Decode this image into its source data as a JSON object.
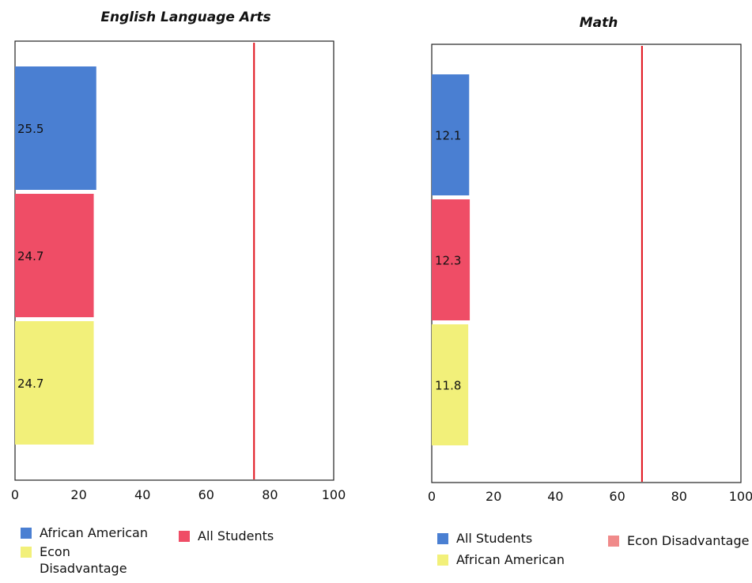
{
  "chart_data": [
    {
      "type": "bar",
      "orientation": "horizontal",
      "title": "English Language Arts",
      "xlabel": "",
      "ylabel": "",
      "xlim": [
        0,
        100
      ],
      "x_ticks": [
        "0",
        "20",
        "40",
        "60",
        "80",
        "100"
      ],
      "grid": false,
      "reference_line": {
        "value": 75,
        "color": "#e0101a"
      },
      "series": [
        {
          "name": "African American",
          "value": 25.5,
          "label": "25.5",
          "color": "#4a7fd2"
        },
        {
          "name": "All Students",
          "value": 24.7,
          "label": "24.7",
          "color": "#ef4d66"
        },
        {
          "name": "Econ Disadvantage",
          "value": 24.7,
          "label": "24.7",
          "color": "#f2f07a"
        }
      ],
      "legend": {
        "position": "bottom",
        "items": [
          {
            "text": "African American",
            "color": "#4a7fd2"
          },
          {
            "text": "All Students",
            "color": "#ef4d66"
          },
          {
            "text": "Econ Disadvantage",
            "text_lines": [
              "Econ",
              "Disadvantage"
            ],
            "color": "#f2f07a"
          }
        ]
      }
    },
    {
      "type": "bar",
      "orientation": "horizontal",
      "title": "Math",
      "xlabel": "",
      "ylabel": "",
      "xlim": [
        0,
        100
      ],
      "x_ticks": [
        "0",
        "20",
        "40",
        "60",
        "80",
        "100"
      ],
      "grid": false,
      "reference_line": {
        "value": 68,
        "color": "#e0101a"
      },
      "series": [
        {
          "name": "All Students",
          "value": 12.1,
          "label": "12.1",
          "color": "#4a7fd2"
        },
        {
          "name": "Econ Disadvantage",
          "value": 12.3,
          "label": "12.3",
          "color": "#ef4d66"
        },
        {
          "name": "African American",
          "value": 11.8,
          "label": "11.8",
          "color": "#f2f07a"
        }
      ],
      "legend": {
        "position": "bottom",
        "items": [
          {
            "text": "All Students",
            "color": "#4a7fd2"
          },
          {
            "text": "Econ Disadvantage",
            "color": "#f08a8a"
          },
          {
            "text": "African American",
            "color": "#f2f07a"
          }
        ]
      }
    }
  ]
}
